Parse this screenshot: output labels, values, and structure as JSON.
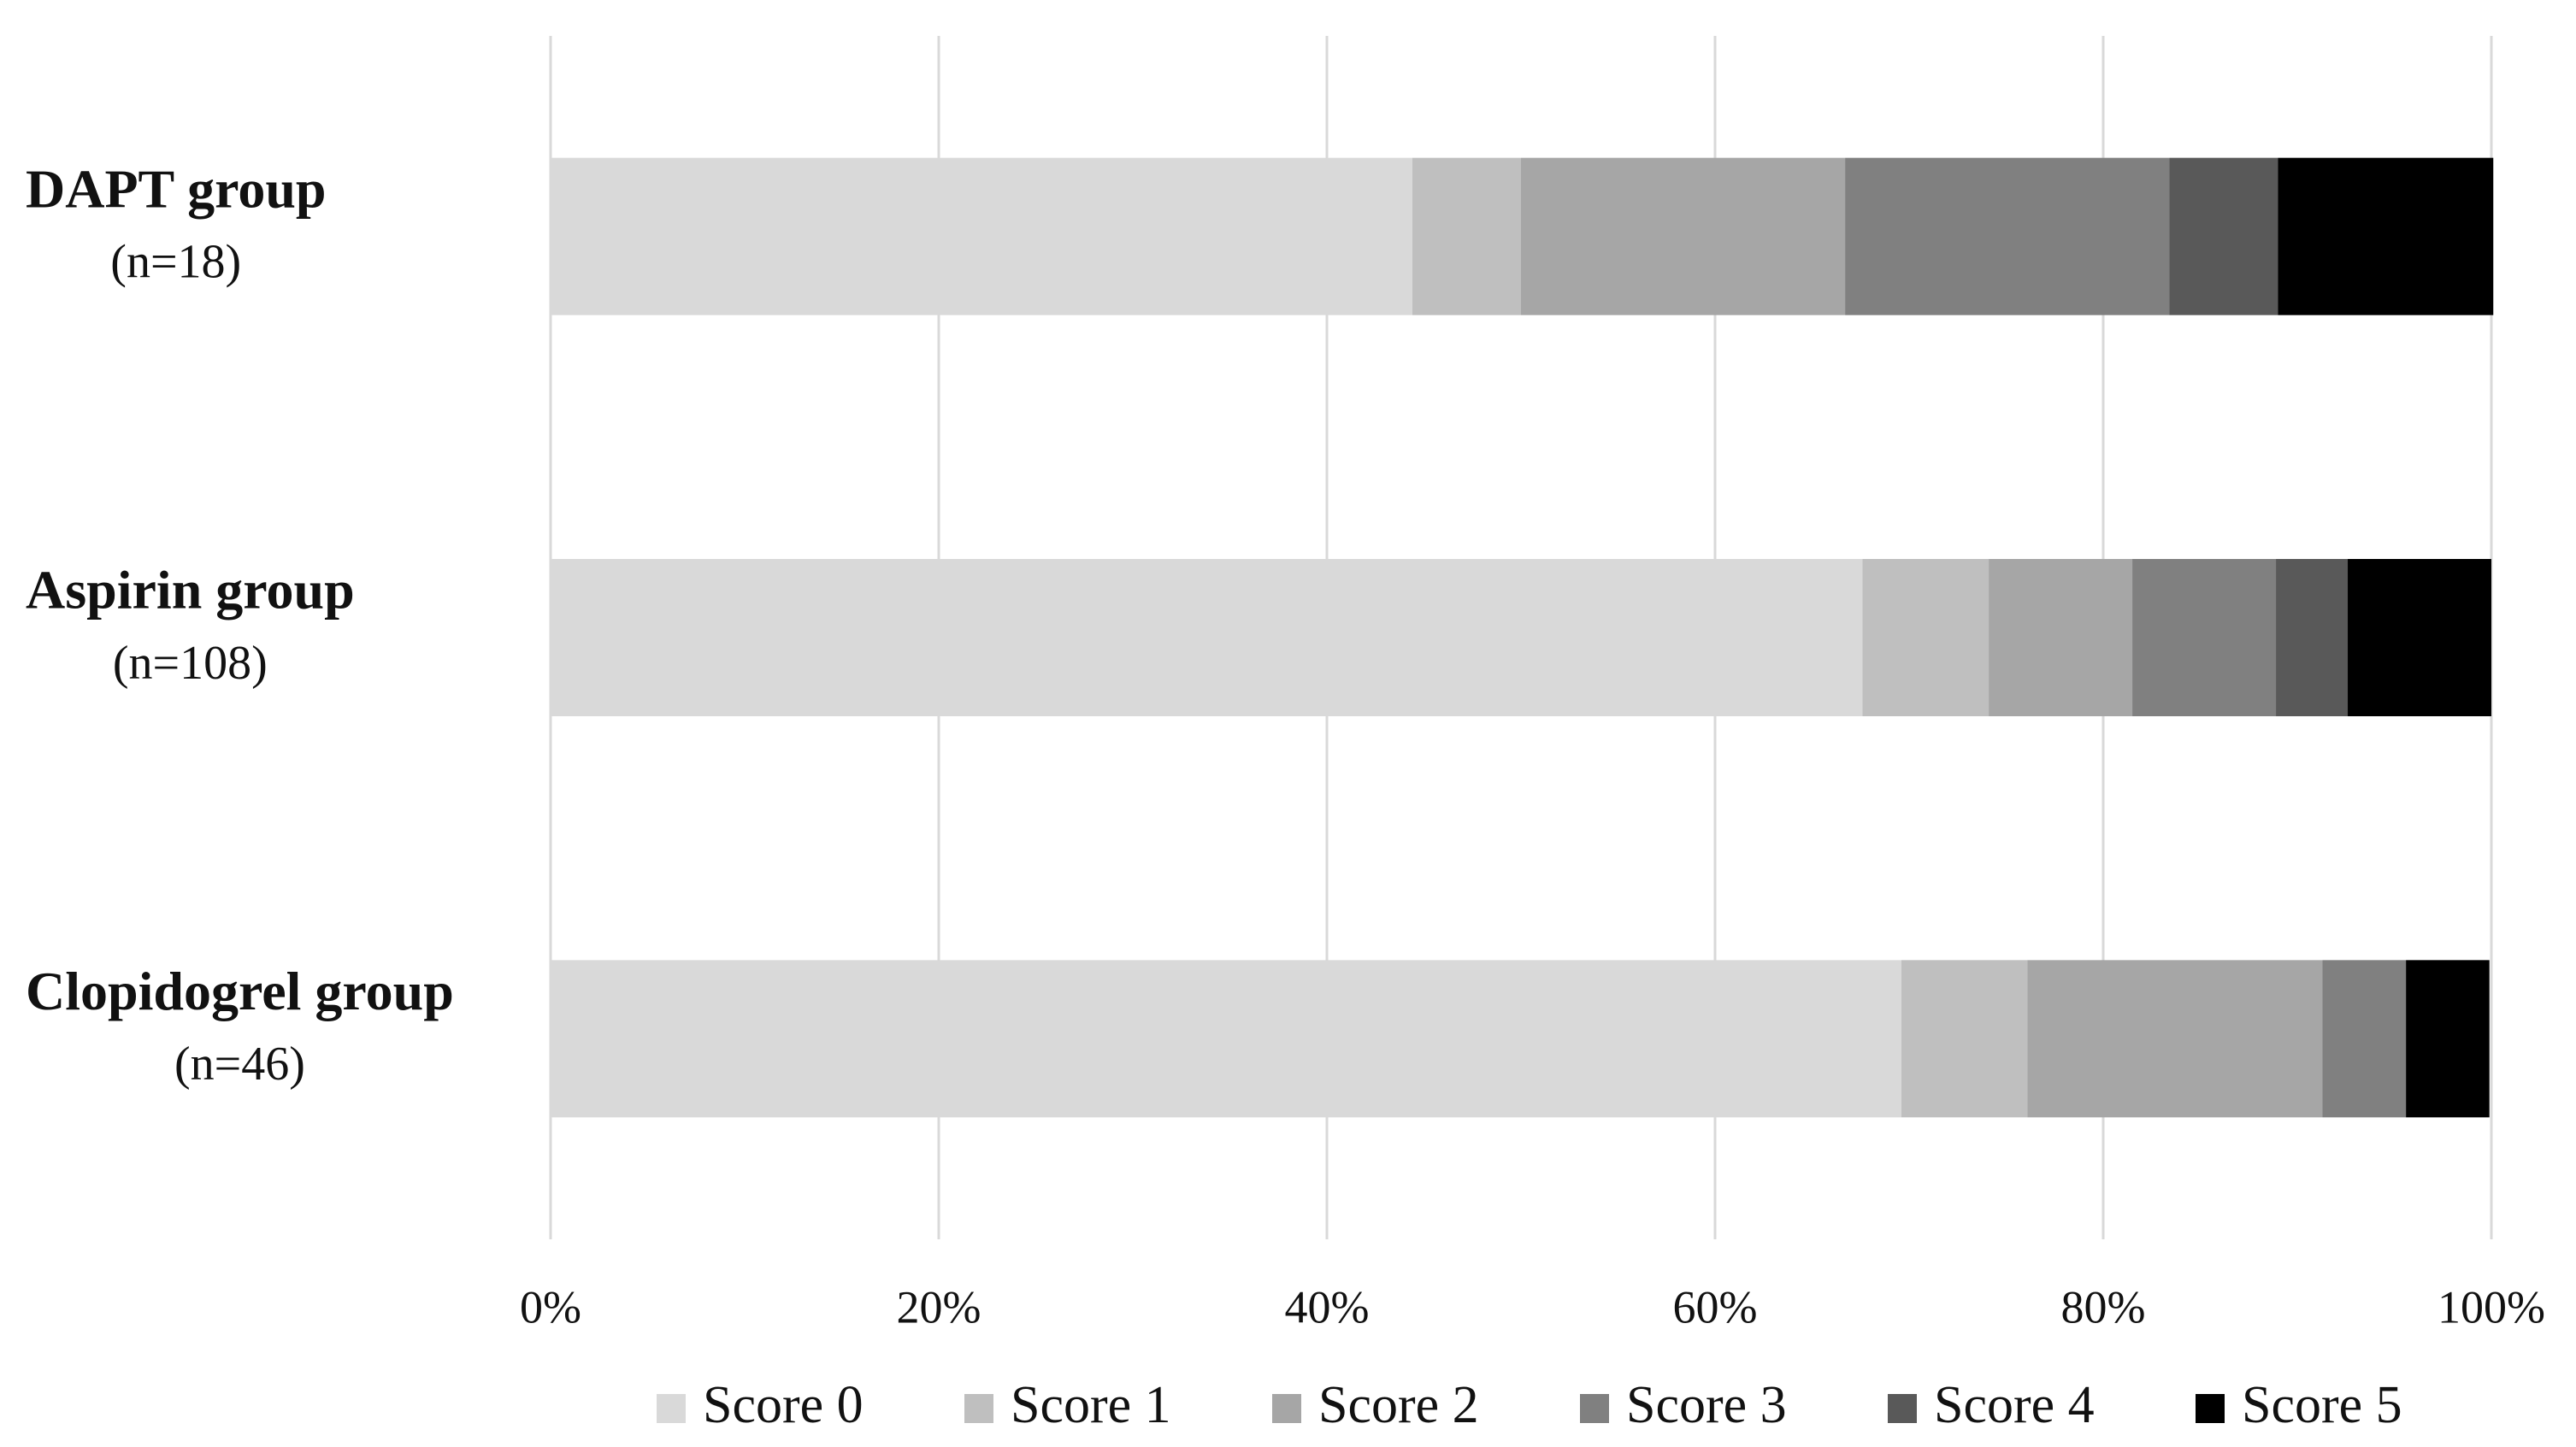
{
  "chart_data": {
    "type": "stacked_bar_horizontal",
    "categories": [
      "DAPT group",
      "Aspirin group",
      "Clopidogrel group"
    ],
    "sample_sizes": [
      "(n=18)",
      "(n=108)",
      "(n=46)"
    ],
    "series": [
      {
        "name": "Score 0",
        "color": "#d9d9d9",
        "values": [
          44.4,
          67.6,
          69.6
        ]
      },
      {
        "name": "Score 1",
        "color": "#bfbfbf",
        "values": [
          5.6,
          6.5,
          6.5
        ]
      },
      {
        "name": "Score 2",
        "color": "#a6a6a6",
        "values": [
          16.7,
          7.4,
          15.2
        ]
      },
      {
        "name": "Score 3",
        "color": "#808080",
        "values": [
          16.7,
          7.4,
          4.3
        ]
      },
      {
        "name": "Score 4",
        "color": "#595959",
        "values": [
          5.6,
          3.7,
          0
        ]
      },
      {
        "name": "Score 5",
        "color": "#000000",
        "values": [
          11.1,
          7.4,
          4.3
        ]
      }
    ],
    "xlim": [
      0,
      100
    ],
    "xticks": [
      {
        "value": 0,
        "label": "0%"
      },
      {
        "value": 20,
        "label": "20%"
      },
      {
        "value": 40,
        "label": "40%"
      },
      {
        "value": 60,
        "label": "60%"
      },
      {
        "value": 80,
        "label": "80%"
      },
      {
        "value": 100,
        "label": "100%"
      }
    ],
    "grid": true,
    "legend": "bottom"
  }
}
